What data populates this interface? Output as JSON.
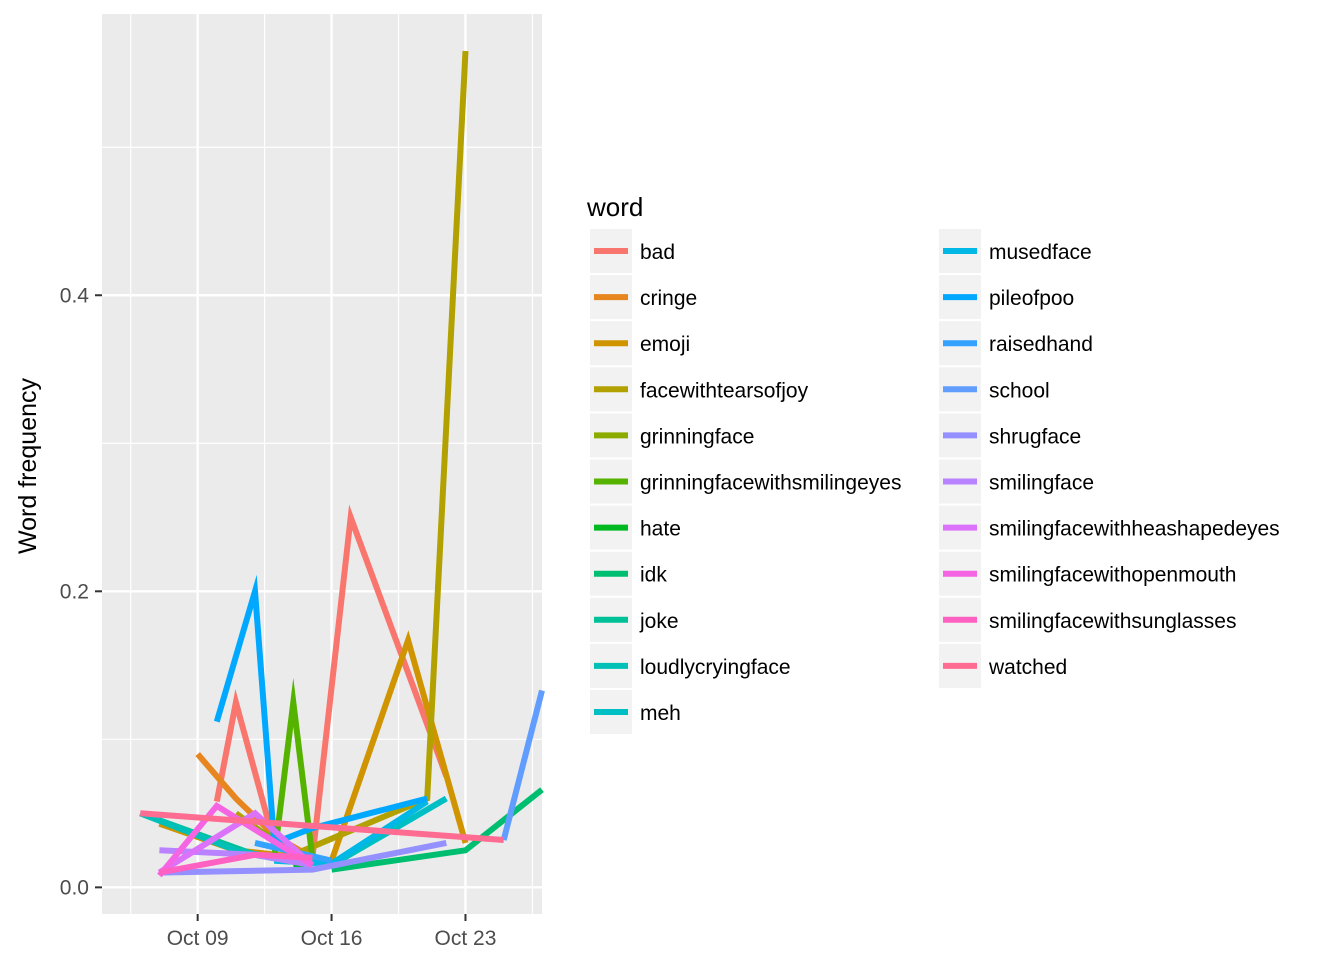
{
  "chart_data": {
    "type": "line",
    "title": "",
    "xlabel": "",
    "ylabel": "Word frequency",
    "x_ticks": [
      "Oct 09",
      "Oct 16",
      "Oct 23"
    ],
    "x_tick_dates": [
      "2017-10-09",
      "2017-10-16",
      "2017-10-23"
    ],
    "y_ticks": [
      "0.0",
      "0.2",
      "0.4"
    ],
    "y_tick_values": [
      0.0,
      0.2,
      0.4
    ],
    "xlim": [
      "2017-10-04",
      "2017-10-27"
    ],
    "ylim": [
      -0.018,
      0.59
    ],
    "grid": true,
    "legend": {
      "title": "word",
      "position": "right",
      "columns": 2
    },
    "series": [
      {
        "name": "bad",
        "color": "#F8766D",
        "points": [
          [
            "2017-10-10",
            0.058
          ],
          [
            "2017-10-11",
            0.125
          ],
          [
            "2017-10-13",
            0.03
          ],
          [
            "2017-10-15",
            0.02
          ],
          [
            "2017-10-17",
            0.25
          ],
          [
            "2017-10-22",
            0.075
          ]
        ]
      },
      {
        "name": "cringe",
        "color": "#E7851E",
        "points": [
          [
            "2017-10-09",
            0.09
          ],
          [
            "2017-10-11",
            0.06
          ],
          [
            "2017-10-13",
            0.035
          ],
          [
            "2017-10-15",
            0.02
          ]
        ]
      },
      {
        "name": "emoji",
        "color": "#D09400",
        "points": [
          [
            "2017-10-07",
            0.043
          ],
          [
            "2017-10-11",
            0.025
          ],
          [
            "2017-10-16",
            0.018
          ],
          [
            "2017-10-20",
            0.167
          ],
          [
            "2017-10-23",
            0.03
          ]
        ]
      },
      {
        "name": "facewithtearsofjoy",
        "color": "#B2A100",
        "points": [
          [
            "2017-10-11",
            0.05
          ],
          [
            "2017-10-14",
            0.022
          ],
          [
            "2017-10-21",
            0.06
          ],
          [
            "2017-10-23",
            0.565
          ]
        ]
      },
      {
        "name": "grinningface",
        "color": "#8BAB00",
        "points": [
          [
            "2017-10-12",
            0.04
          ],
          [
            "2017-10-14",
            0.025
          ]
        ]
      },
      {
        "name": "grinningfacewithsmilingeyes",
        "color": "#55B300",
        "points": [
          [
            "2017-10-13",
            0.02
          ],
          [
            "2017-10-14",
            0.125
          ],
          [
            "2017-10-15",
            0.02
          ]
        ]
      },
      {
        "name": "hate",
        "color": "#00B81F",
        "points": [
          [
            "2017-10-14",
            0.015
          ],
          [
            "2017-10-16",
            0.018
          ]
        ]
      },
      {
        "name": "idk",
        "color": "#00BE70",
        "points": [
          [
            "2017-10-16",
            0.012
          ],
          [
            "2017-10-23",
            0.025
          ],
          [
            "2017-10-27",
            0.066
          ]
        ]
      },
      {
        "name": "joke",
        "color": "#00C098",
        "points": [
          [
            "2017-10-06",
            0.05
          ],
          [
            "2017-10-12",
            0.022
          ],
          [
            "2017-10-15",
            0.015
          ]
        ]
      },
      {
        "name": "loudlycryingface",
        "color": "#00C0B8",
        "points": [
          [
            "2017-10-06",
            0.05
          ],
          [
            "2017-10-11",
            0.025
          ],
          [
            "2017-10-15",
            0.015
          ]
        ]
      },
      {
        "name": "meh",
        "color": "#00BFC4",
        "points": [
          [
            "2017-10-16",
            0.015
          ],
          [
            "2017-10-22",
            0.06
          ]
        ]
      },
      {
        "name": "musedface",
        "color": "#00B8E5",
        "points": [
          [
            "2017-10-13",
            0.018
          ],
          [
            "2017-10-16",
            0.016
          ],
          [
            "2017-10-21",
            0.058
          ]
        ]
      },
      {
        "name": "pileofpoo",
        "color": "#00A9FF",
        "points": [
          [
            "2017-10-10",
            0.112
          ],
          [
            "2017-10-12",
            0.2
          ],
          [
            "2017-10-13",
            0.03
          ],
          [
            "2017-10-15",
            0.04
          ],
          [
            "2017-10-21",
            0.06
          ]
        ]
      },
      {
        "name": "raisedhand",
        "color": "#35A2FF",
        "points": [
          [
            "2017-10-12",
            0.03
          ],
          [
            "2017-10-16",
            0.018
          ]
        ]
      },
      {
        "name": "school",
        "color": "#619CFF",
        "points": [
          [
            "2017-10-25",
            0.032
          ],
          [
            "2017-10-27",
            0.133
          ]
        ]
      },
      {
        "name": "shrugface",
        "color": "#9590FF",
        "points": [
          [
            "2017-10-07",
            0.01
          ],
          [
            "2017-10-15",
            0.012
          ],
          [
            "2017-10-22",
            0.03
          ]
        ]
      },
      {
        "name": "smilingface",
        "color": "#B983FF",
        "points": [
          [
            "2017-10-07",
            0.025
          ],
          [
            "2017-10-12",
            0.022
          ],
          [
            "2017-10-15",
            0.015
          ]
        ]
      },
      {
        "name": "smilingfacewithheashapedeyes",
        "color": "#DC71FA",
        "points": [
          [
            "2017-10-07",
            0.01
          ],
          [
            "2017-10-12",
            0.05
          ],
          [
            "2017-10-15",
            0.015
          ]
        ]
      },
      {
        "name": "smilingfacewithopenmouth",
        "color": "#F564E3",
        "points": [
          [
            "2017-10-07",
            0.008
          ],
          [
            "2017-10-10",
            0.055
          ],
          [
            "2017-10-15",
            0.015
          ]
        ]
      },
      {
        "name": "smilingfacewithsunglasses",
        "color": "#FF61C3",
        "points": [
          [
            "2017-10-07",
            0.01
          ],
          [
            "2017-10-12",
            0.022
          ],
          [
            "2017-10-15",
            0.02
          ]
        ]
      },
      {
        "name": "watched",
        "color": "#FF6C91",
        "points": [
          [
            "2017-10-06",
            0.05
          ],
          [
            "2017-10-25",
            0.032
          ]
        ]
      }
    ]
  }
}
